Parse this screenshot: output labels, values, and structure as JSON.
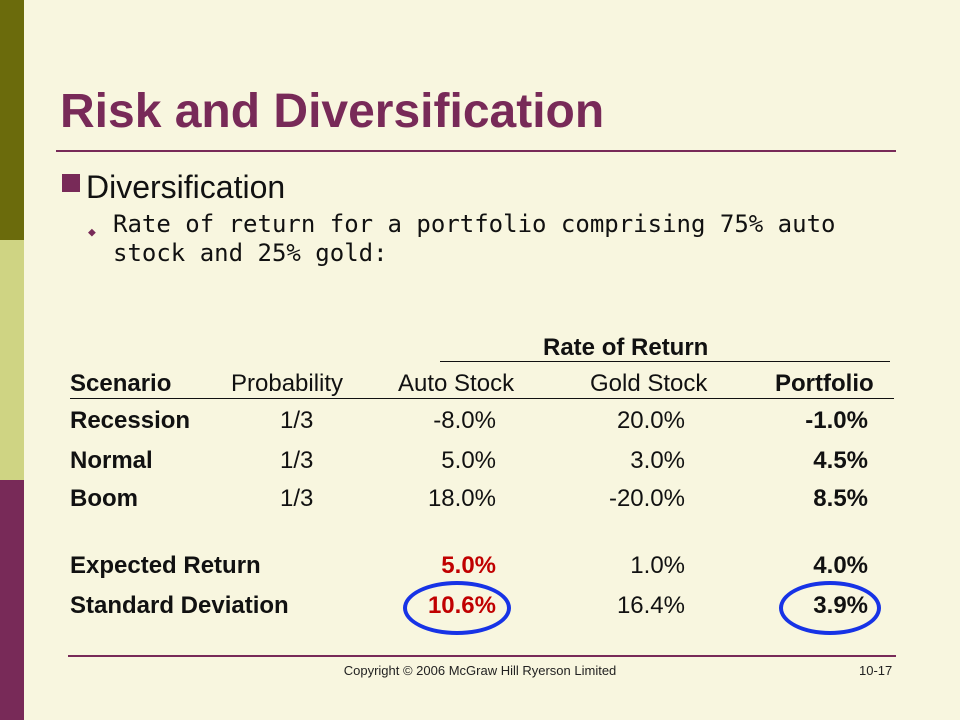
{
  "slide": {
    "title": "Risk and Diversification",
    "bullet_main": "Diversification",
    "bullet_sub": "Rate of return for a portfolio comprising 75% auto stock and 25% gold:"
  },
  "table": {
    "group_header": "Rate of Return",
    "headers": [
      "Scenario",
      "Probability",
      "Auto Stock",
      "Gold Stock",
      "Portfolio"
    ],
    "rows": [
      {
        "scenario": "Recession",
        "probability": "1/3",
        "auto": "-8.0%",
        "gold": "20.0%",
        "portfolio": "-1.0%"
      },
      {
        "scenario": "Normal",
        "probability": "1/3",
        "auto": "5.0%",
        "gold": "3.0%",
        "portfolio": "4.5%"
      },
      {
        "scenario": "Boom",
        "probability": "1/3",
        "auto": "18.0%",
        "gold": "-20.0%",
        "portfolio": "8.5%"
      }
    ],
    "expected": {
      "label": "Expected Return",
      "auto": "5.0%",
      "gold": "1.0%",
      "portfolio": "4.0%"
    },
    "stdev": {
      "label": "Standard Deviation",
      "auto": "10.6%",
      "gold": "16.4%",
      "portfolio": "3.9%"
    }
  },
  "footer": {
    "copyright": "Copyright © 2006 McGraw Hill Ryerson Limited",
    "slide_number": "10-17"
  },
  "colors": {
    "title": "#782a58",
    "highlight_red": "#c00000",
    "circle_blue": "#1733e6",
    "background": "#f8f6df"
  }
}
